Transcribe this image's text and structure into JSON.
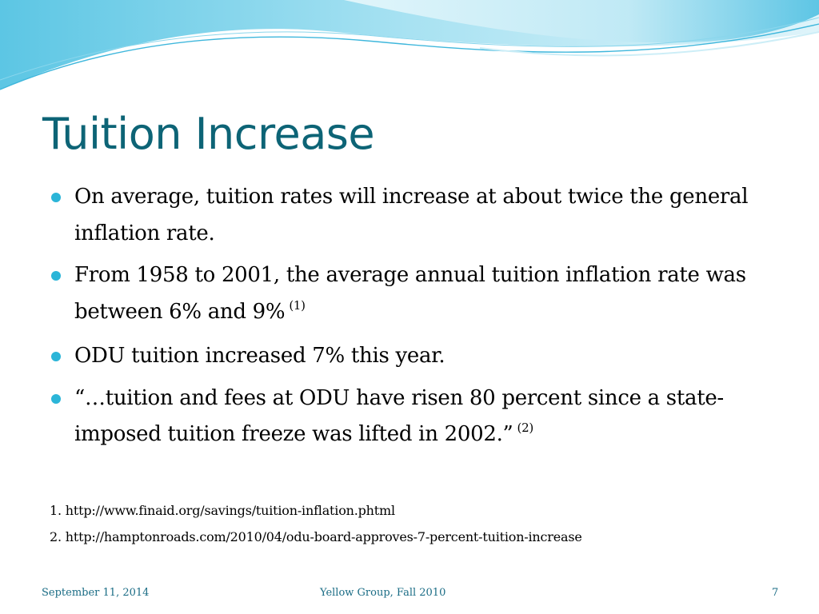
{
  "slide": {
    "title": "Tuition Increase",
    "bullets": [
      {
        "text": "On average, tuition rates will increase at about twice the general inflation rate.",
        "ref": ""
      },
      {
        "text": "From 1958 to 2001, the average annual tuition inflation rate was between 6% and 9%",
        "ref": "(1)"
      },
      {
        "text": "ODU tuition increased 7% this year.",
        "ref": ""
      },
      {
        "text": "“…tuition and fees at ODU have risen 80 percent since a state-imposed tuition freeze was lifted in 2002.”",
        "ref": "(2)"
      }
    ],
    "references": [
      "1. http://www.finaid.org/savings/tuition-inflation.phtml",
      "2. http://hamptonroads.com/2010/04/odu-board-approves-7-percent-tuition-increase"
    ],
    "footer": {
      "date": "September 11, 2014",
      "center": "Yellow Group, Fall 2010",
      "page": "7"
    }
  },
  "colors": {
    "title": "#0d6476",
    "bullet_marker": "#2bb5d8",
    "footer": "#1a6c85",
    "wave_light": "#cdeef7",
    "wave_mid": "#7fd3ea",
    "wave_dark": "#3fb7dc"
  }
}
